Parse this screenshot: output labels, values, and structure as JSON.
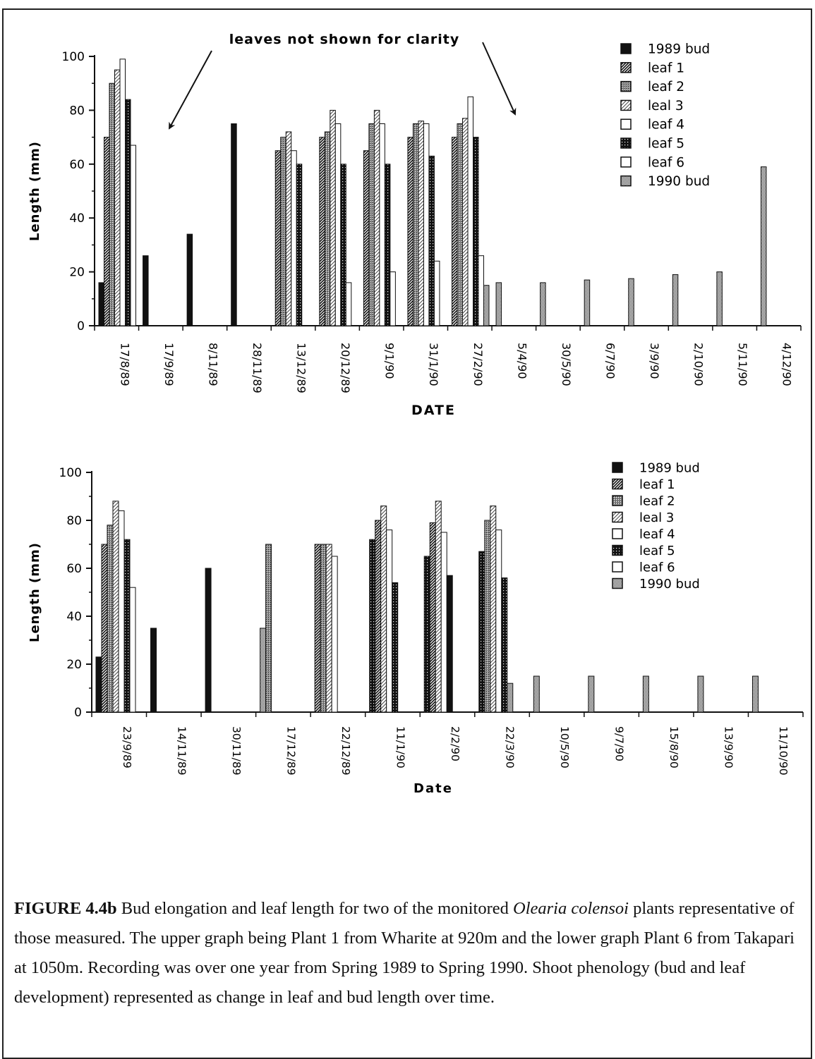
{
  "annotation": "leaves not shown for clarity",
  "legend_items": [
    {
      "name": "1989 bud",
      "fill": "solid"
    },
    {
      "name": "leaf 1",
      "fill": "diag"
    },
    {
      "name": "leaf 2",
      "fill": "cross"
    },
    {
      "name": "leal 3",
      "fill": "lightdiag"
    },
    {
      "name": "leaf 4",
      "fill": "white"
    },
    {
      "name": "leaf 5",
      "fill": "dotdark"
    },
    {
      "name": "leaf 6",
      "fill": "white"
    },
    {
      "name": "1990 bud",
      "fill": "checker"
    }
  ],
  "chart_data": [
    {
      "type": "bar",
      "xlabel": "DATE",
      "ylabel": "Length  (mm)",
      "ylim": [
        0,
        100
      ],
      "yticks": [
        0,
        20,
        40,
        60,
        80,
        100
      ],
      "legend_position": "top-right",
      "categories": [
        "17/8/89",
        "17/9/89",
        "8/11/89",
        "28/11/89",
        "13/12/89",
        "20/12/89",
        "9/1/90",
        "31/1/90",
        "27/2/90",
        "5/4/90",
        "30/5/90",
        "6/7/90",
        "3/9/90",
        "2/10/90",
        "5/11/90",
        "4/12/90"
      ],
      "groups": [
        [
          {
            "s": 0,
            "v": 16
          },
          {
            "s": 1,
            "v": 70
          },
          {
            "s": 2,
            "v": 90
          },
          {
            "s": 3,
            "v": 95
          },
          {
            "s": 4,
            "v": 99
          },
          {
            "s": 5,
            "v": 84
          },
          {
            "s": 6,
            "v": 67
          }
        ],
        [
          {
            "s": 0,
            "v": 26
          }
        ],
        [
          {
            "s": 0,
            "v": 34
          }
        ],
        [
          {
            "s": 0,
            "v": 75
          }
        ],
        [
          {
            "s": 1,
            "v": 65
          },
          {
            "s": 2,
            "v": 70
          },
          {
            "s": 3,
            "v": 72
          },
          {
            "s": 4,
            "v": 65
          },
          {
            "s": 5,
            "v": 60
          }
        ],
        [
          {
            "s": 1,
            "v": 70
          },
          {
            "s": 2,
            "v": 72
          },
          {
            "s": 3,
            "v": 80
          },
          {
            "s": 4,
            "v": 75
          },
          {
            "s": 5,
            "v": 60
          },
          {
            "s": 6,
            "v": 16
          }
        ],
        [
          {
            "s": 1,
            "v": 65
          },
          {
            "s": 2,
            "v": 75
          },
          {
            "s": 3,
            "v": 80
          },
          {
            "s": 4,
            "v": 75
          },
          {
            "s": 5,
            "v": 60
          },
          {
            "s": 6,
            "v": 20
          }
        ],
        [
          {
            "s": 1,
            "v": 70
          },
          {
            "s": 2,
            "v": 75
          },
          {
            "s": 3,
            "v": 76
          },
          {
            "s": 4,
            "v": 75
          },
          {
            "s": 5,
            "v": 63
          },
          {
            "s": 6,
            "v": 24
          }
        ],
        [
          {
            "s": 1,
            "v": 70
          },
          {
            "s": 2,
            "v": 75
          },
          {
            "s": 3,
            "v": 77
          },
          {
            "s": 4,
            "v": 85
          },
          {
            "s": 5,
            "v": 70
          },
          {
            "s": 6,
            "v": 26
          },
          {
            "s": 7,
            "v": 15
          }
        ],
        [
          {
            "s": 7,
            "v": 16
          }
        ],
        [
          {
            "s": 7,
            "v": 16
          }
        ],
        [
          {
            "s": 7,
            "v": 17
          }
        ],
        [
          {
            "s": 7,
            "v": 17.5
          }
        ],
        [
          {
            "s": 7,
            "v": 19
          }
        ],
        [
          {
            "s": 7,
            "v": 20
          }
        ],
        [
          {
            "s": 7,
            "v": 59
          }
        ]
      ]
    },
    {
      "type": "bar",
      "xlabel": "Date",
      "ylabel": "Length  (mm)",
      "ylim": [
        0,
        100
      ],
      "yticks": [
        0,
        20,
        40,
        60,
        80,
        100
      ],
      "legend_position": "top-right",
      "categories": [
        "23/9/89",
        "14/11/89",
        "30/11/89",
        "17/12/89",
        "22/12/89",
        "11/1/90",
        "2/2/90",
        "22/3/90",
        "10/5/90",
        "9/7/90",
        "15/8/90",
        "13/9/90",
        "11/10/90"
      ],
      "groups": [
        [
          {
            "s": 0,
            "v": 23
          },
          {
            "s": 1,
            "v": 70
          },
          {
            "s": 2,
            "v": 78
          },
          {
            "s": 3,
            "v": 88
          },
          {
            "s": 4,
            "v": 84
          },
          {
            "s": 5,
            "v": 72
          },
          {
            "s": 6,
            "v": 52
          }
        ],
        [
          {
            "s": 0,
            "v": 35
          }
        ],
        [
          {
            "s": 0,
            "v": 60
          }
        ],
        [
          {
            "s": 7,
            "v": 35
          },
          {
            "s": 2,
            "v": 70
          }
        ],
        [
          {
            "s": 1,
            "v": 70
          },
          {
            "s": 2,
            "v": 70
          },
          {
            "s": 3,
            "v": 70
          },
          {
            "s": 4,
            "v": 65
          }
        ],
        [
          {
            "s": 5,
            "v": 72
          },
          {
            "s": 1,
            "v": 80
          },
          {
            "s": 3,
            "v": 86
          },
          {
            "s": 4,
            "v": 76
          },
          {
            "s": 5,
            "v": 54
          }
        ],
        [
          {
            "s": 5,
            "v": 65
          },
          {
            "s": 1,
            "v": 79
          },
          {
            "s": 3,
            "v": 88
          },
          {
            "s": 4,
            "v": 75
          },
          {
            "s": 0,
            "v": 57
          }
        ],
        [
          {
            "s": 5,
            "v": 67
          },
          {
            "s": 2,
            "v": 80
          },
          {
            "s": 3,
            "v": 86
          },
          {
            "s": 4,
            "v": 76
          },
          {
            "s": 5,
            "v": 56
          },
          {
            "s": 7,
            "v": 12
          }
        ],
        [
          {
            "s": 7,
            "v": 15
          }
        ],
        [
          {
            "s": 7,
            "v": 15
          }
        ],
        [
          {
            "s": 7,
            "v": 15
          }
        ],
        [
          {
            "s": 7,
            "v": 15
          }
        ],
        [
          {
            "s": 7,
            "v": 15
          }
        ]
      ]
    }
  ],
  "caption": {
    "label": "FIGURE 4.4b",
    "text1": " Bud elongation and leaf length for two of the monitored ",
    "species1": "Olearia",
    "species2": "colensoi",
    "text2": "  plants representative of those measured. The upper graph being Plant 1 from Wharite at 920m and the lower graph Plant 6 from Takapari at 1050m. Recording was over one year from Spring 1989 to Spring 1990. Shoot phenology (bud and leaf development) represented as change in leaf and bud length over time."
  }
}
